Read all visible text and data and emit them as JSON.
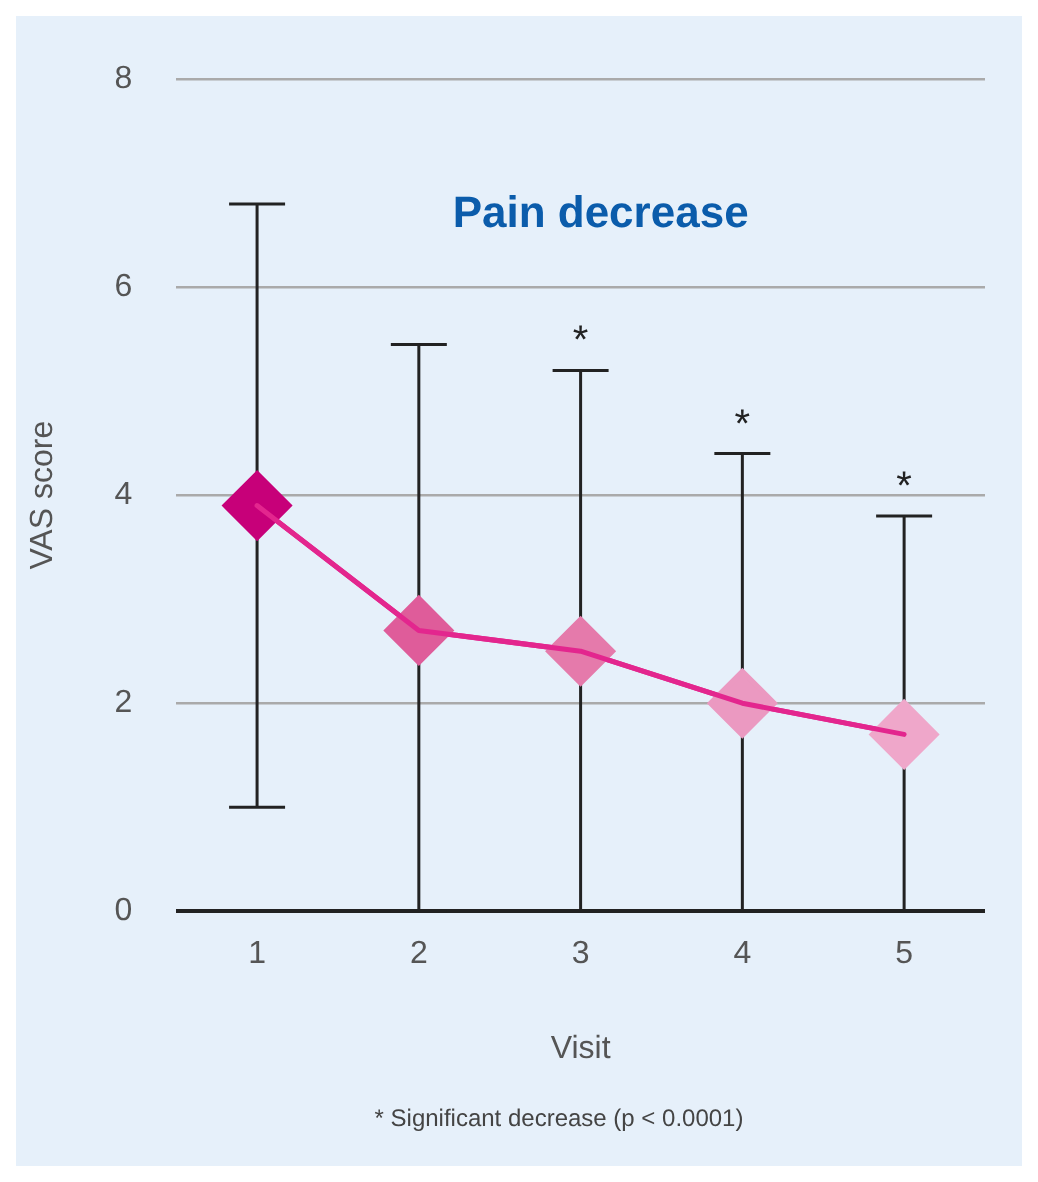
{
  "chart_data": {
    "type": "line",
    "title": "Pain decrease",
    "xlabel": "Visit",
    "ylabel": "VAS score",
    "categories": [
      "1",
      "2",
      "3",
      "4",
      "5"
    ],
    "series": [
      {
        "color": "#e3268e",
        "colors": [
          "#c70079",
          "#df5c9a",
          "#e57aab",
          "#eb99c1",
          "#efa7ca"
        ],
        "values": [
          3.9,
          2.7,
          2.5,
          2.0,
          1.7
        ],
        "errors": [
          [
            1.0,
            6.8
          ],
          [
            0,
            5.45
          ],
          [
            0,
            5.2
          ],
          [
            0,
            4.4
          ],
          [
            0,
            3.8
          ]
        ]
      }
    ],
    "ylim": [
      0,
      8
    ],
    "yticks": [
      0,
      2,
      4,
      6,
      8
    ],
    "grid": "y",
    "legend": false,
    "marker": "diamond",
    "line_style": "solid",
    "annotations": [
      {
        "text": "*",
        "x": "3",
        "y": 5.2
      },
      {
        "text": "*",
        "x": "4",
        "y": 4.4
      },
      {
        "text": "*",
        "x": "5",
        "y": 3.8
      },
      "* Significant decrease (p < 0.0001)"
    ]
  }
}
